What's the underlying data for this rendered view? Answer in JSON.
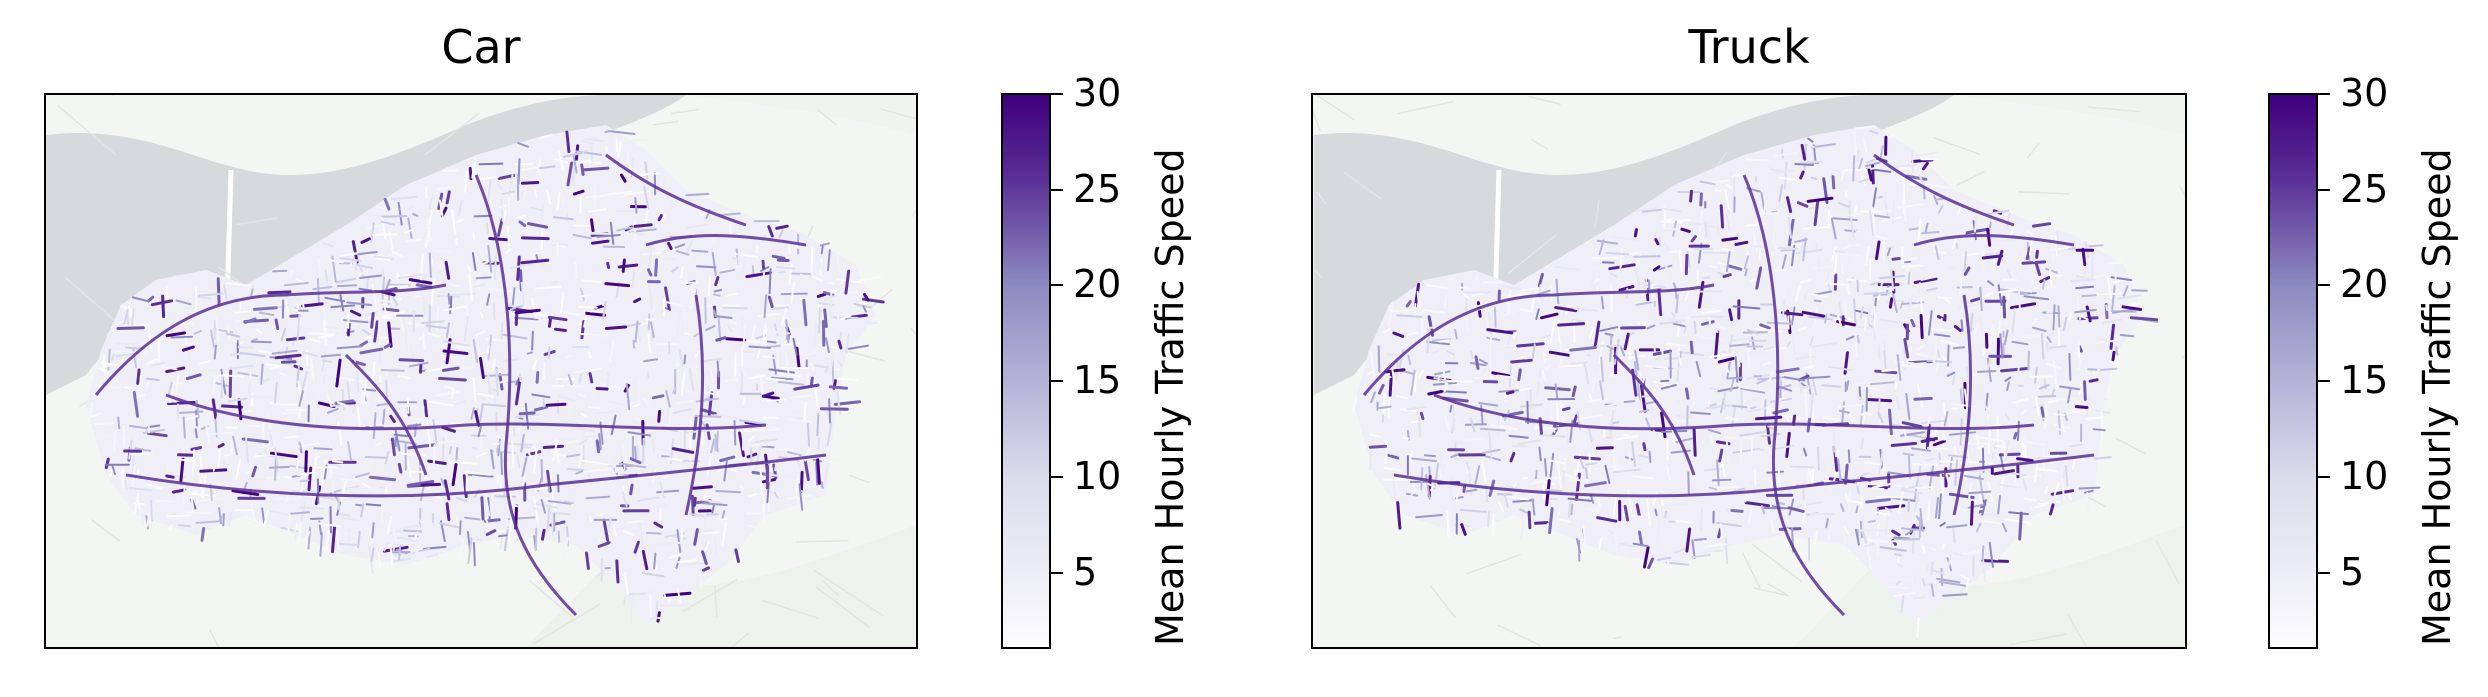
{
  "colormap": {
    "name": "Purples",
    "low": "#fcfbfd",
    "mid": "#8e8cc1",
    "high": "#3f007d"
  },
  "basemap_colors": {
    "land": "#f4f6f3",
    "water": "#d6dadc",
    "green": "#eef2ec",
    "roads": "#e3e5e3"
  },
  "panels": [
    {
      "title": "Car",
      "colorbar": {
        "label": "Mean Hourly Traffic Speed",
        "ticks": [
          "5",
          "10",
          "15",
          "20",
          "25",
          "30"
        ],
        "min": 1,
        "max": 30
      }
    },
    {
      "title": "Truck",
      "colorbar": {
        "label": "Mean Hourly Traffic Speed",
        "ticks": [
          "5",
          "10",
          "15",
          "20",
          "25",
          "30"
        ],
        "min": 1,
        "max": 30
      }
    }
  ]
}
